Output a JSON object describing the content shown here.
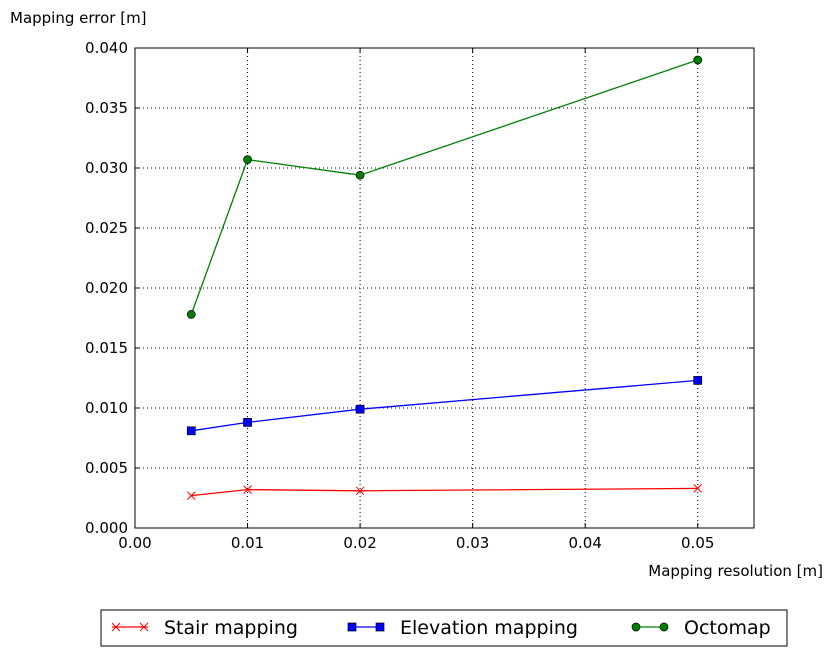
{
  "chart_data": {
    "type": "line",
    "title": "",
    "ylabel": "Mapping error [m]",
    "xlabel": "Mapping resolution [m]",
    "xlim": [
      0.0,
      0.055
    ],
    "ylim": [
      0.0,
      0.04
    ],
    "x_ticks": [
      "0.00",
      "0.01",
      "0.02",
      "0.03",
      "0.04",
      "0.05"
    ],
    "y_ticks": [
      "0.000",
      "0.005",
      "0.010",
      "0.015",
      "0.020",
      "0.025",
      "0.030",
      "0.035",
      "0.040"
    ],
    "grid": true,
    "legend_position": "bottom, outside",
    "series": [
      {
        "name": "Stair mapping",
        "color": "#ff0000",
        "marker": "x",
        "x": [
          0.005,
          0.01,
          0.02,
          0.05
        ],
        "y": [
          0.0027,
          0.0032,
          0.0031,
          0.0033
        ]
      },
      {
        "name": "Elevation mapping",
        "color": "#0000ff",
        "marker": "square",
        "x": [
          0.005,
          0.01,
          0.02,
          0.05
        ],
        "y": [
          0.0081,
          0.0088,
          0.0099,
          0.0123
        ]
      },
      {
        "name": "Octomap",
        "color": "#008000",
        "marker": "circle",
        "x": [
          0.005,
          0.01,
          0.02,
          0.05
        ],
        "y": [
          0.0178,
          0.0307,
          0.0294,
          0.039
        ]
      }
    ]
  }
}
